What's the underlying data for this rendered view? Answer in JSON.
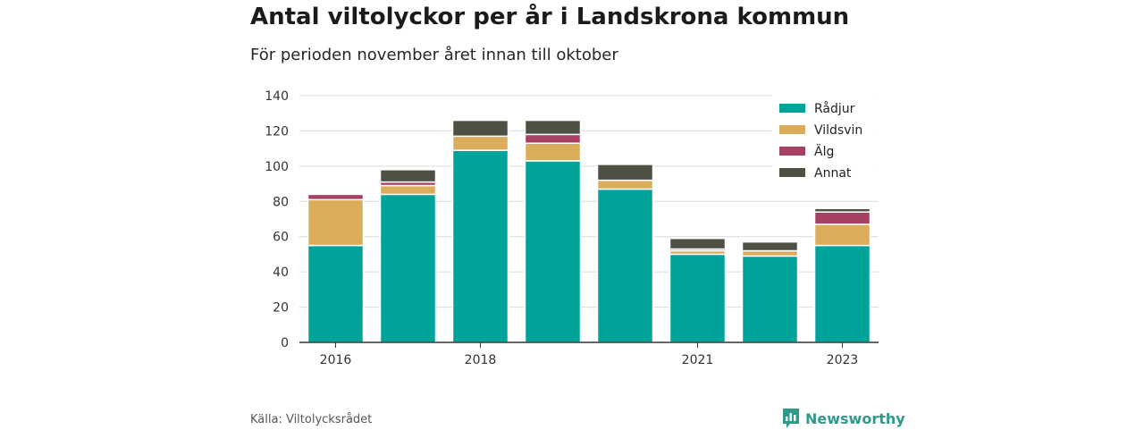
{
  "title": "Antal viltolyckor per år i Landskrona kommun",
  "subtitle": "För perioden november året innan till oktober",
  "source": "Källa: Viltolycksrådet",
  "brand": {
    "name": "Newsworthy",
    "icon": "newsworthy-logo-icon",
    "color": "#2f9a8c"
  },
  "chart_data": {
    "type": "bar",
    "stacked": true,
    "categories": [
      "2016",
      "2017",
      "2018",
      "2019",
      "2020",
      "2021",
      "2022",
      "2023"
    ],
    "x_tick_labels": [
      "2016",
      "",
      "2018",
      "",
      "",
      "2021",
      "",
      "2023"
    ],
    "y_ticks": [
      0,
      20,
      40,
      60,
      80,
      100,
      120,
      140
    ],
    "ylim": [
      0,
      140
    ],
    "grid": true,
    "legend_position": "top-right",
    "series": [
      {
        "name": "Rådjur",
        "color": "#00a39a",
        "values": [
          55,
          84,
          109,
          103,
          87,
          50,
          49,
          55
        ]
      },
      {
        "name": "Vildsvin",
        "color": "#dbad5b",
        "values": [
          26,
          5,
          8,
          10,
          5,
          2,
          3,
          12
        ]
      },
      {
        "name": "Älg",
        "color": "#a64064",
        "values": [
          3,
          2,
          0,
          5,
          0,
          1,
          0,
          7
        ]
      },
      {
        "name": "Annat",
        "color": "#4f5044",
        "values": [
          0,
          7,
          9,
          8,
          9,
          6,
          5,
          2
        ]
      }
    ]
  }
}
